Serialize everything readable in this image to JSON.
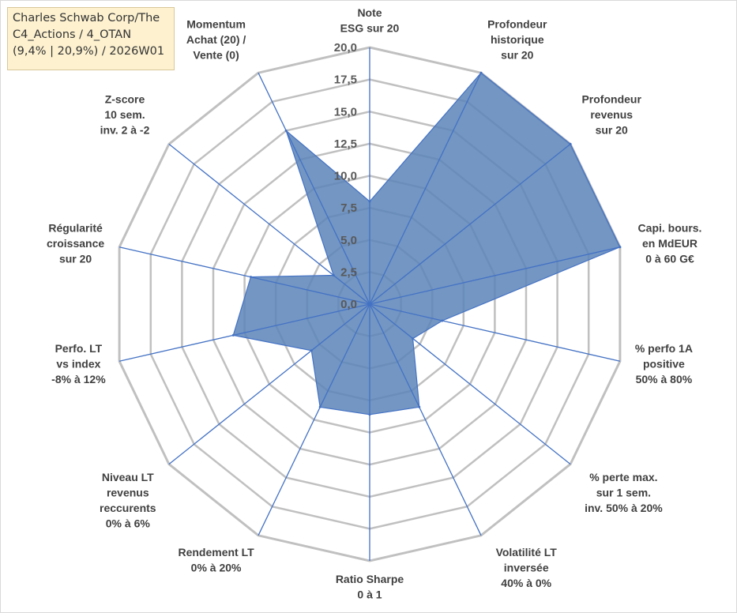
{
  "title_box": {
    "line1": "Charles Schwab Corp/The",
    "line2": "C4_Actions / 4_OTAN",
    "line3": "(9,4% | 20,9%) / 2026W01"
  },
  "chart_data": {
    "type": "radar",
    "rlim": [
      0,
      20
    ],
    "grid": true,
    "r_ticks": [
      0,
      2.5,
      5,
      7.5,
      10,
      12.5,
      15,
      17.5,
      20
    ],
    "r_tick_labels": [
      "0,0",
      "2,5",
      "5,0",
      "7,5",
      "10,0",
      "12,5",
      "15,0",
      "17,5",
      "20,0"
    ],
    "axes": [
      {
        "label": [
          "Note",
          "ESG sur 20"
        ],
        "value": 8.0
      },
      {
        "label": [
          "Profondeur",
          "historique",
          "sur 20"
        ],
        "value": 20.0
      },
      {
        "label": [
          "Profondeur",
          "revenus",
          "sur 20"
        ],
        "value": 20.0
      },
      {
        "label": [
          "Capi. bours.",
          "en MdEUR",
          "0 à 60 G€"
        ],
        "value": 20.0
      },
      {
        "label": [
          "% perfo 1A",
          "positive",
          "50% à 80%"
        ],
        "value": 5.8
      },
      {
        "label": [
          "% perte max.",
          "sur 1 sem.",
          "inv. 50% à 20%"
        ],
        "value": 4.3
      },
      {
        "label": [
          "Volatilité LT",
          "inversée",
          "40% à 0%"
        ],
        "value": 8.9
      },
      {
        "label": [
          "Ratio Sharpe",
          "0 à 1"
        ],
        "value": 8.6
      },
      {
        "label": [
          "Rendement LT",
          "0% à 20%"
        ],
        "value": 8.9
      },
      {
        "label": [
          "Niveau LT",
          "revenus",
          "reccurents",
          "0% à 6%"
        ],
        "value": 5.8
      },
      {
        "label": [
          "Perfo. LT",
          "vs index",
          "-8% à 12%"
        ],
        "value": 10.9
      },
      {
        "label": [
          "Régularité",
          "croissance",
          "sur 20"
        ],
        "value": 9.5
      },
      {
        "label": [
          "Z-score",
          "10 sem.",
          "inv. 2 à -2"
        ],
        "value": 3.6
      },
      {
        "label": [
          "Momentum",
          "Achat (20) /",
          "Vente (0)"
        ],
        "value": 15.0
      }
    ],
    "colors": {
      "fill": "#5b84b8",
      "stroke": "#4472c4",
      "spoke": "#4472c4",
      "grid": "#c0c0c0"
    }
  }
}
